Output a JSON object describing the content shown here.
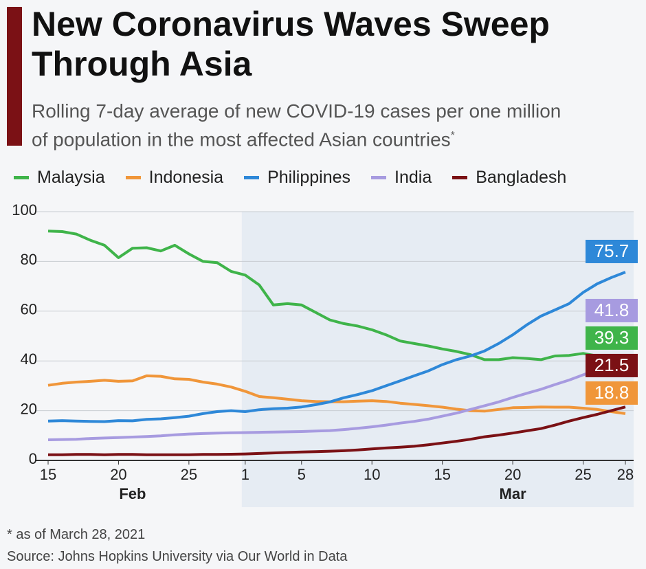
{
  "chart_data": {
    "type": "line",
    "title": "New Coronavirus Waves Sweep Through Asia",
    "subtitle": "Rolling 7-day average of new COVID-19 cases per one million of population in the most affected Asian countries",
    "subtitle_marker": "*",
    "footnote": "* as of March 28, 2021",
    "source": "Source: Johns Hopkins University via Our World in Data",
    "x": [
      "Feb 15",
      "Feb 16",
      "Feb 17",
      "Feb 18",
      "Feb 19",
      "Feb 20",
      "Feb 21",
      "Feb 22",
      "Feb 23",
      "Feb 24",
      "Feb 25",
      "Feb 26",
      "Feb 27",
      "Feb 28",
      "Mar 1",
      "Mar 2",
      "Mar 3",
      "Mar 4",
      "Mar 5",
      "Mar 6",
      "Mar 7",
      "Mar 8",
      "Mar 9",
      "Mar 10",
      "Mar 11",
      "Mar 12",
      "Mar 13",
      "Mar 14",
      "Mar 15",
      "Mar 16",
      "Mar 17",
      "Mar 18",
      "Mar 19",
      "Mar 20",
      "Mar 21",
      "Mar 22",
      "Mar 23",
      "Mar 24",
      "Mar 25",
      "Mar 26",
      "Mar 27",
      "Mar 28"
    ],
    "xticks": [
      {
        "value": "Feb 15",
        "label": "15"
      },
      {
        "value": "Feb 20",
        "label": "20"
      },
      {
        "value": "Feb 25",
        "label": "25"
      },
      {
        "value": "Mar 1",
        "label": "1"
      },
      {
        "value": "Mar 5",
        "label": "5"
      },
      {
        "value": "Mar 10",
        "label": "10"
      },
      {
        "value": "Mar 15",
        "label": "15"
      },
      {
        "value": "Mar 20",
        "label": "20"
      },
      {
        "value": "Mar 25",
        "label": "25"
      },
      {
        "value": "Mar 28",
        "label": "28"
      }
    ],
    "month_labels": [
      {
        "value": "Feb 21",
        "label": "Feb"
      },
      {
        "value": "Mar 20",
        "label": "Mar"
      }
    ],
    "shaded_range": [
      "Mar 1",
      "Mar 28"
    ],
    "ylim": [
      0,
      100
    ],
    "yticks": [
      0,
      20,
      40,
      60,
      80,
      100
    ],
    "grid": true,
    "series": [
      {
        "name": "Malaysia",
        "color": "#3fb44a",
        "values": [
          92.2,
          92,
          91,
          88.5,
          86.5,
          81.5,
          85.3,
          85.5,
          84.2,
          86.5,
          83,
          80,
          79.5,
          76,
          74.5,
          70.5,
          62.5,
          63,
          62.5,
          59.5,
          56.5,
          55,
          54,
          52.5,
          50.5,
          48,
          47,
          46,
          44.8,
          43.8,
          42.5,
          40.5,
          40.5,
          41.3,
          41,
          40.5,
          42,
          42.2,
          43,
          42,
          39.5,
          39.3
        ]
      },
      {
        "name": "Indonesia",
        "color": "#f0963a",
        "values": [
          30.2,
          31,
          31.5,
          31.8,
          32.2,
          31.8,
          32,
          34,
          33.8,
          32.8,
          32.6,
          31.5,
          30.7,
          29.5,
          27.8,
          25.7,
          25.2,
          24.6,
          24,
          23.7,
          23.6,
          23.6,
          23.8,
          24,
          23.7,
          23,
          22.5,
          22,
          21.4,
          20.6,
          20,
          19.8,
          20.5,
          21.2,
          21.3,
          21.5,
          21.4,
          21.4,
          21,
          20.5,
          19.6,
          18.8
        ]
      },
      {
        "name": "Philippines",
        "color": "#2e88d8",
        "values": [
          15.8,
          16,
          15.8,
          15.7,
          15.6,
          16,
          15.9,
          16.5,
          16.7,
          17.2,
          17.8,
          18.8,
          19.6,
          20,
          19.6,
          20.4,
          20.8,
          21,
          21.5,
          22.4,
          23.5,
          25.2,
          26.5,
          28,
          30,
          32,
          34,
          36,
          38.5,
          40.5,
          42,
          44,
          47,
          50.5,
          54.5,
          58,
          60.5,
          63,
          67.5,
          71,
          73.5,
          75.7
        ]
      },
      {
        "name": "India",
        "color": "#a79be0",
        "values": [
          8.3,
          8.4,
          8.5,
          8.8,
          9,
          9.2,
          9.4,
          9.6,
          9.9,
          10.3,
          10.6,
          10.8,
          11,
          11.1,
          11.2,
          11.3,
          11.4,
          11.5,
          11.6,
          11.8,
          12,
          12.4,
          12.9,
          13.5,
          14.2,
          15,
          15.7,
          16.6,
          17.8,
          19,
          20.5,
          22,
          23.5,
          25.3,
          27,
          28.6,
          30.5,
          32.3,
          34.4,
          36.5,
          39,
          41.8
        ]
      },
      {
        "name": "Bangladesh",
        "color": "#7b1115",
        "values": [
          2.3,
          2.3,
          2.4,
          2.4,
          2.3,
          2.4,
          2.4,
          2.3,
          2.3,
          2.3,
          2.3,
          2.4,
          2.4,
          2.5,
          2.6,
          2.8,
          3,
          3.2,
          3.4,
          3.5,
          3.7,
          3.9,
          4.2,
          4.6,
          5,
          5.3,
          5.7,
          6.3,
          7,
          7.7,
          8.5,
          9.5,
          10.2,
          11,
          11.9,
          12.8,
          14.2,
          15.8,
          17.2,
          18.5,
          20,
          21.5
        ]
      }
    ]
  }
}
